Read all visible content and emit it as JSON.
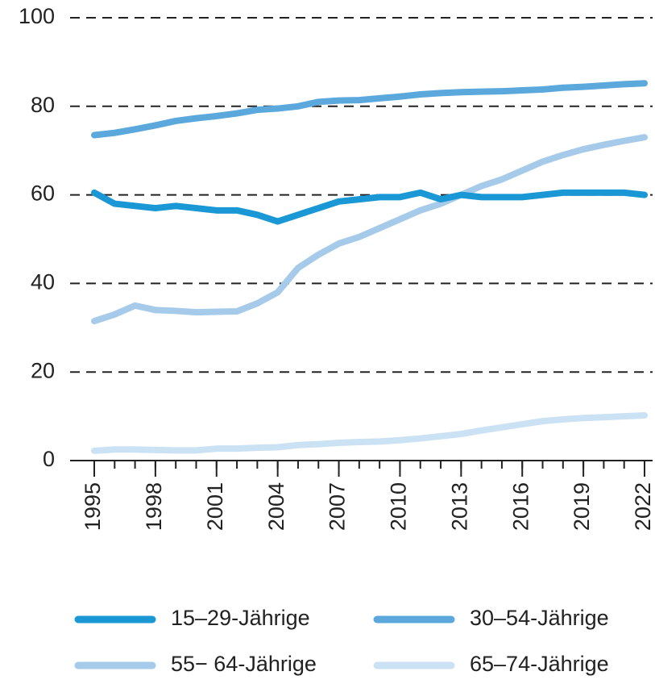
{
  "chart_data": {
    "type": "line",
    "x": [
      1995,
      1996,
      1997,
      1998,
      1999,
      2000,
      2001,
      2002,
      2003,
      2004,
      2005,
      2006,
      2007,
      2008,
      2009,
      2010,
      2011,
      2012,
      2013,
      2014,
      2015,
      2016,
      2017,
      2018,
      2019,
      2020,
      2021,
      2022
    ],
    "xlim": [
      1995,
      2022
    ],
    "xticks": [
      1995,
      1998,
      2001,
      2004,
      2007,
      2010,
      2013,
      2016,
      2019,
      2022
    ],
    "ylim": [
      0,
      100
    ],
    "yticks": [
      0,
      20,
      40,
      60,
      80,
      100
    ],
    "grid": true,
    "series": [
      {
        "name": "15–29-Jährige",
        "color": "#1a98d5",
        "values": [
          60.5,
          58,
          57.5,
          57,
          57.5,
          57,
          56.5,
          56.5,
          55.5,
          54,
          55.5,
          57,
          58.5,
          59,
          59.5,
          59.5,
          60.5,
          59,
          60,
          59.5,
          59.5,
          59.5,
          60,
          60.5,
          60.5,
          60.5,
          60.5,
          60
        ]
      },
      {
        "name": "30–54-Jährige",
        "color": "#5ba8dc",
        "values": [
          73.5,
          74,
          74.8,
          75.7,
          76.7,
          77.3,
          77.8,
          78.4,
          79.2,
          79.5,
          80,
          81,
          81.3,
          81.4,
          81.8,
          82.2,
          82.7,
          83,
          83.2,
          83.3,
          83.4,
          83.6,
          83.8,
          84.2,
          84.4,
          84.7,
          85,
          85.2
        ]
      },
      {
        "name": "55− 64-Jährige",
        "color": "#a6cbea",
        "values": [
          31.5,
          33,
          35,
          34,
          33.8,
          33.5,
          33.6,
          33.7,
          35.5,
          38,
          43.5,
          46.5,
          49,
          50.5,
          52.5,
          54.5,
          56.5,
          58,
          60,
          62,
          63.5,
          65.5,
          67.5,
          69,
          70.3,
          71.3,
          72.2,
          73
        ]
      },
      {
        "name": "65–74-Jährige",
        "color": "#cbe2f4",
        "values": [
          2.2,
          2.5,
          2.5,
          2.4,
          2.3,
          2.3,
          2.7,
          2.7,
          2.9,
          3.0,
          3.5,
          3.7,
          4.0,
          4.2,
          4.3,
          4.6,
          5.0,
          5.5,
          6.0,
          6.8,
          7.5,
          8.2,
          8.9,
          9.3,
          9.6,
          9.8,
          10.0,
          10.2
        ]
      }
    ]
  }
}
